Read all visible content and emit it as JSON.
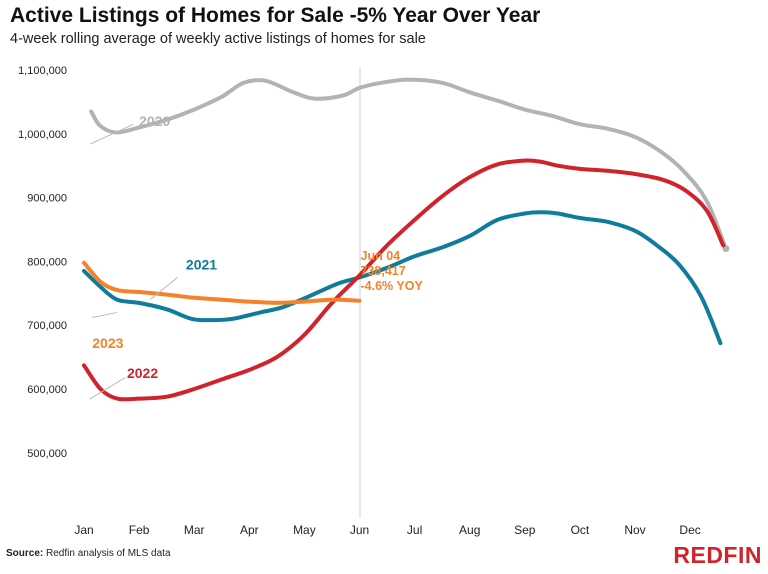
{
  "title": "Active Listings of Homes for Sale -5% Year Over Year",
  "subtitle": "4-week rolling average of weekly active listings of homes for sale",
  "source_label": "Source:",
  "source_text": " Redfin analysis of MLS data",
  "logo_text": "REDFIN",
  "colors": {
    "2020": "#b3b3b3",
    "2021": "#0e7c9a",
    "2022": "#d0232a",
    "2023": "#f4822a"
  },
  "chart_data": {
    "type": "line",
    "title": "Active Listings of Homes for Sale -5% Year Over Year",
    "xlabel": "",
    "ylabel": "",
    "x_ticks": [
      "Jan",
      "Feb",
      "Mar",
      "Apr",
      "May",
      "Jun",
      "Jul",
      "Aug",
      "Sep",
      "Oct",
      "Nov",
      "Dec"
    ],
    "y_ticks": [
      500000,
      600000,
      700000,
      800000,
      900000,
      1000000,
      1100000
    ],
    "y_tick_labels": [
      "500,000",
      "600,000",
      "700,000",
      "800,000",
      "900,000",
      "1,000,000",
      "1,100,000"
    ],
    "ylim": [
      440000,
      1110000
    ],
    "grid": false,
    "series": [
      {
        "name": "2020",
        "x": [
          0.13,
          0.3,
          0.6,
          1.0,
          1.5,
          2.0,
          2.5,
          2.9,
          3.3,
          3.8,
          4.2,
          4.7,
          5.0,
          5.4,
          5.9,
          6.5,
          7.0,
          7.5,
          8.0,
          8.5,
          9.0,
          9.5,
          10.0,
          10.5,
          10.9,
          11.3,
          11.65
        ],
        "values": [
          1035000,
          1012000,
          1002000,
          1010000,
          1022000,
          1038000,
          1058000,
          1080000,
          1083000,
          1065000,
          1055000,
          1060000,
          1072000,
          1080000,
          1085000,
          1080000,
          1065000,
          1052000,
          1038000,
          1028000,
          1015000,
          1008000,
          995000,
          970000,
          940000,
          895000,
          820000
        ]
      },
      {
        "name": "2021",
        "x": [
          0.0,
          0.3,
          0.6,
          1.0,
          1.5,
          1.95,
          2.3,
          2.7,
          3.2,
          3.6,
          4.0,
          4.6,
          5.0,
          5.5,
          6.0,
          6.5,
          7.0,
          7.5,
          8.0,
          8.3,
          8.6,
          9.0,
          9.5,
          10.0,
          10.4,
          10.8,
          11.2,
          11.55
        ],
        "values": [
          785000,
          760000,
          740000,
          735000,
          725000,
          710000,
          708000,
          710000,
          720000,
          728000,
          742000,
          765000,
          775000,
          790000,
          808000,
          822000,
          840000,
          865000,
          875000,
          877000,
          875000,
          868000,
          862000,
          848000,
          825000,
          795000,
          745000,
          672000
        ]
      },
      {
        "name": "2022",
        "x": [
          0.0,
          0.3,
          0.6,
          1.0,
          1.5,
          2.0,
          2.5,
          3.0,
          3.5,
          4.0,
          4.5,
          5.0,
          5.5,
          6.0,
          6.5,
          7.0,
          7.5,
          8.0,
          8.3,
          8.6,
          9.0,
          9.5,
          10.0,
          10.5,
          10.9,
          11.3,
          11.6
        ],
        "values": [
          637000,
          600000,
          585000,
          585000,
          588000,
          600000,
          615000,
          630000,
          650000,
          685000,
          735000,
          778000,
          825000,
          865000,
          902000,
          932000,
          952000,
          958000,
          956000,
          950000,
          945000,
          942000,
          937000,
          928000,
          912000,
          880000,
          825000
        ]
      },
      {
        "name": "2023",
        "x": [
          0.0,
          0.3,
          0.6,
          1.0,
          1.5,
          2.0,
          2.5,
          3.0,
          3.5,
          4.0,
          4.5,
          5.0
        ],
        "values": [
          798000,
          768000,
          755000,
          752000,
          748000,
          743000,
          740000,
          737000,
          735000,
          737000,
          740000,
          738417
        ]
      }
    ],
    "series_labels": [
      "2020",
      "2021",
      "2022",
      "2023"
    ],
    "annotation": {
      "lines": [
        "Jun 04",
        "738,417",
        "-4.6% YOY"
      ],
      "x": 5.0
    }
  }
}
